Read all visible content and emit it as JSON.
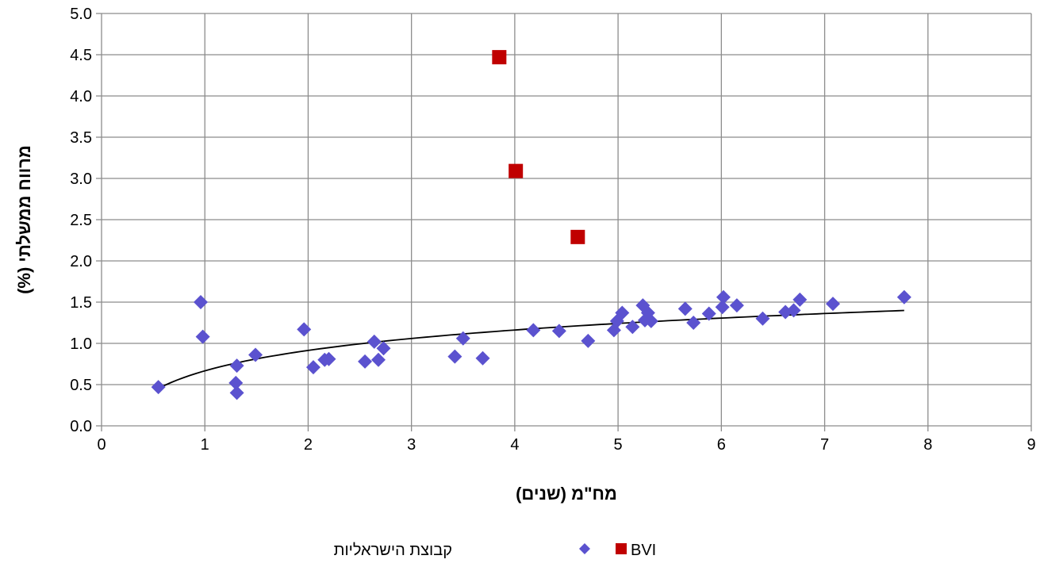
{
  "chart_data": {
    "type": "scatter",
    "title": "",
    "xlabel": "מח\"מ (שנים)",
    "ylabel": "מרווח ממשלתי (%)",
    "xlim": [
      0,
      9
    ],
    "ylim": [
      0,
      5
    ],
    "xticks": [
      "0",
      "1",
      "2",
      "3",
      "4",
      "5",
      "6",
      "7",
      "8",
      "9"
    ],
    "yticks": [
      "0.0",
      "0.5",
      "1.0",
      "1.5",
      "2.0",
      "2.5",
      "3.0",
      "3.5",
      "4.0",
      "4.5",
      "5.0"
    ],
    "grid": true,
    "legend_position": "bottom",
    "series": [
      {
        "name": "קבוצת הישראליות",
        "marker": "diamond",
        "color": "#5B52CF",
        "points": [
          [
            0.55,
            0.47
          ],
          [
            0.96,
            1.5
          ],
          [
            0.98,
            1.08
          ],
          [
            1.3,
            0.52
          ],
          [
            1.31,
            0.73
          ],
          [
            1.31,
            0.4
          ],
          [
            1.49,
            0.86
          ],
          [
            1.96,
            1.17
          ],
          [
            2.05,
            0.71
          ],
          [
            2.16,
            0.8
          ],
          [
            2.2,
            0.81
          ],
          [
            2.55,
            0.78
          ],
          [
            2.64,
            1.02
          ],
          [
            2.68,
            0.8
          ],
          [
            2.73,
            0.94
          ],
          [
            3.42,
            0.84
          ],
          [
            3.5,
            1.06
          ],
          [
            3.69,
            0.82
          ],
          [
            4.18,
            1.16
          ],
          [
            4.43,
            1.15
          ],
          [
            4.71,
            1.03
          ],
          [
            4.96,
            1.16
          ],
          [
            4.99,
            1.27
          ],
          [
            5.04,
            1.37
          ],
          [
            5.14,
            1.2
          ],
          [
            5.24,
            1.46
          ],
          [
            5.26,
            1.28
          ],
          [
            5.29,
            1.37
          ],
          [
            5.32,
            1.27
          ],
          [
            5.65,
            1.42
          ],
          [
            5.73,
            1.25
          ],
          [
            5.88,
            1.36
          ],
          [
            6.01,
            1.44
          ],
          [
            6.02,
            1.56
          ],
          [
            6.15,
            1.46
          ],
          [
            6.4,
            1.3
          ],
          [
            6.62,
            1.38
          ],
          [
            6.7,
            1.4
          ],
          [
            6.76,
            1.53
          ],
          [
            7.08,
            1.48
          ],
          [
            7.77,
            1.56
          ]
        ]
      },
      {
        "name": "BVI",
        "marker": "square",
        "color": "#C00000",
        "points": [
          [
            3.85,
            4.47
          ],
          [
            4.01,
            3.09
          ],
          [
            4.61,
            2.29
          ]
        ]
      }
    ],
    "trendline": {
      "type": "logarithmic",
      "color": "#000000",
      "x_range": [
        0.55,
        7.77
      ],
      "a": 0.667,
      "b": 0.357
    }
  }
}
